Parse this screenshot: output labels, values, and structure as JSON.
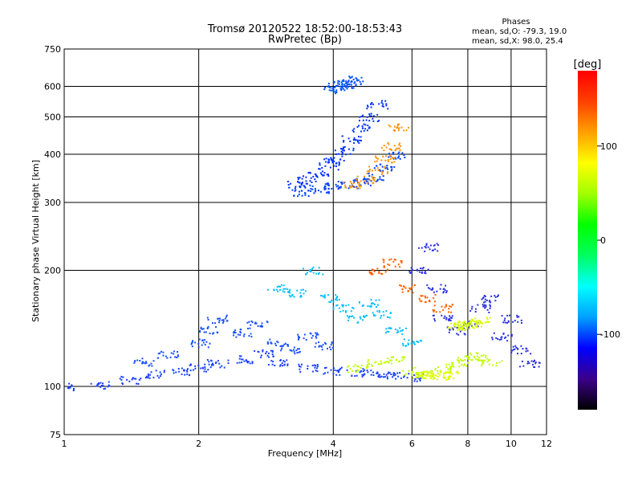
{
  "chart_data": {
    "type": "scatter",
    "title": "Tromsø 20120522 18:52:00-18:53:43",
    "subtitle": "RwPretec (Bp)",
    "xlabel": "Frequency [MHz]",
    "ylabel": "Stationary phase Virtual Height [km]",
    "x_scale": "log",
    "y_scale": "log",
    "xlim": [
      1,
      12
    ],
    "ylim": [
      75,
      750
    ],
    "x_ticks": [
      1,
      2,
      4,
      6,
      8,
      10,
      12
    ],
    "y_ticks": [
      75,
      100,
      200,
      300,
      400,
      500,
      600,
      750
    ],
    "grid": true,
    "phases_header": "Phases",
    "phases_lines": [
      "mean, sd,O: -79.3, 19.0",
      "mean, sd,X:  98.0, 25.4"
    ],
    "colorbar": {
      "label": "[deg]",
      "range": [
        -180,
        180
      ],
      "ticks": [
        100,
        0,
        -100
      ],
      "colormap": [
        "#000000",
        "#3b008a",
        "#0000ff",
        "#00a0ff",
        "#00ffff",
        "#00ff60",
        "#00ff00",
        "#a0ff00",
        "#ffff00",
        "#ffa000",
        "#ff4000",
        "#ff0000"
      ]
    },
    "series": [
      {
        "x": [
          1.0,
          1.2,
          1.4,
          1.6,
          1.8,
          2.0,
          2.2,
          2.5,
          2.8,
          3.0,
          3.5,
          4.0,
          4.5,
          5.0,
          5.5,
          6.0
        ],
        "y": [
          100,
          101,
          104,
          108,
          110,
          112,
          115,
          118,
          122,
          115,
          112,
          110,
          109,
          108,
          107,
          106
        ],
        "color": "#1a40ff"
      },
      {
        "x": [
          1.5,
          1.7,
          2.0,
          2.1,
          2.2,
          2.5,
          2.7,
          3.0,
          3.2,
          3.5,
          3.8
        ],
        "y": [
          116,
          121,
          130,
          140,
          150,
          138,
          145,
          130,
          125,
          135,
          128
        ],
        "color": "#1a50ff"
      },
      {
        "x": [
          3.3,
          3.5,
          3.7,
          3.9,
          4.0,
          4.2,
          4.4,
          4.6,
          4.8,
          5.0
        ],
        "y": [
          335,
          345,
          360,
          375,
          390,
          410,
          440,
          470,
          500,
          540
        ],
        "color": "#0030ff"
      },
      {
        "x": [
          3.4,
          3.7,
          4.0,
          4.3,
          4.6,
          4.9,
          5.2,
          5.5
        ],
        "y": [
          320,
          326,
          330,
          335,
          340,
          350,
          370,
          400
        ],
        "color": "#0040ff"
      },
      {
        "x": [
          4.4,
          4.7,
          5.0,
          5.2,
          5.4,
          5.6
        ],
        "y": [
          335,
          345,
          365,
          390,
          420,
          470
        ],
        "color": "#ff9000"
      },
      {
        "x": [
          3.0,
          3.3,
          3.6,
          3.9,
          4.2,
          4.5,
          4.8,
          5.1,
          5.5,
          6.0
        ],
        "y": [
          180,
          175,
          200,
          170,
          160,
          150,
          165,
          155,
          140,
          130
        ],
        "color": "#00c0ff"
      },
      {
        "x": [
          4.5,
          5.0,
          5.5,
          6.0,
          6.5,
          7.0,
          7.5,
          8.0,
          8.5,
          9.0
        ],
        "y": [
          112,
          115,
          118,
          110,
          108,
          112,
          115,
          118,
          120,
          116
        ],
        "color": "#c0ff00"
      },
      {
        "x": [
          6.2,
          6.5,
          6.8,
          7.0,
          7.5,
          8.0,
          8.5,
          9.0,
          9.5,
          10.0,
          10.5,
          11.0
        ],
        "y": [
          200,
          230,
          180,
          150,
          140,
          145,
          160,
          170,
          135,
          150,
          125,
          115
        ],
        "color": "#2a30e0"
      },
      {
        "x": [
          7.5,
          7.8,
          8.0,
          8.2,
          8.5
        ],
        "y": [
          143,
          144,
          145,
          146,
          148
        ],
        "color": "#d8ff00"
      },
      {
        "x": [
          6.3,
          6.6,
          6.9,
          7.2
        ],
        "y": [
          108,
          107,
          107,
          108
        ],
        "color": "#e0ff00"
      },
      {
        "x": [
          4.0,
          4.1,
          4.2,
          4.3,
          4.4
        ],
        "y": [
          590,
          600,
          610,
          620,
          625
        ],
        "color": "#0050ff"
      },
      {
        "x": [
          5.0,
          5.4,
          5.8,
          6.5,
          7.0
        ],
        "y": [
          200,
          210,
          180,
          170,
          160
        ],
        "color": "#ff6000"
      }
    ]
  }
}
